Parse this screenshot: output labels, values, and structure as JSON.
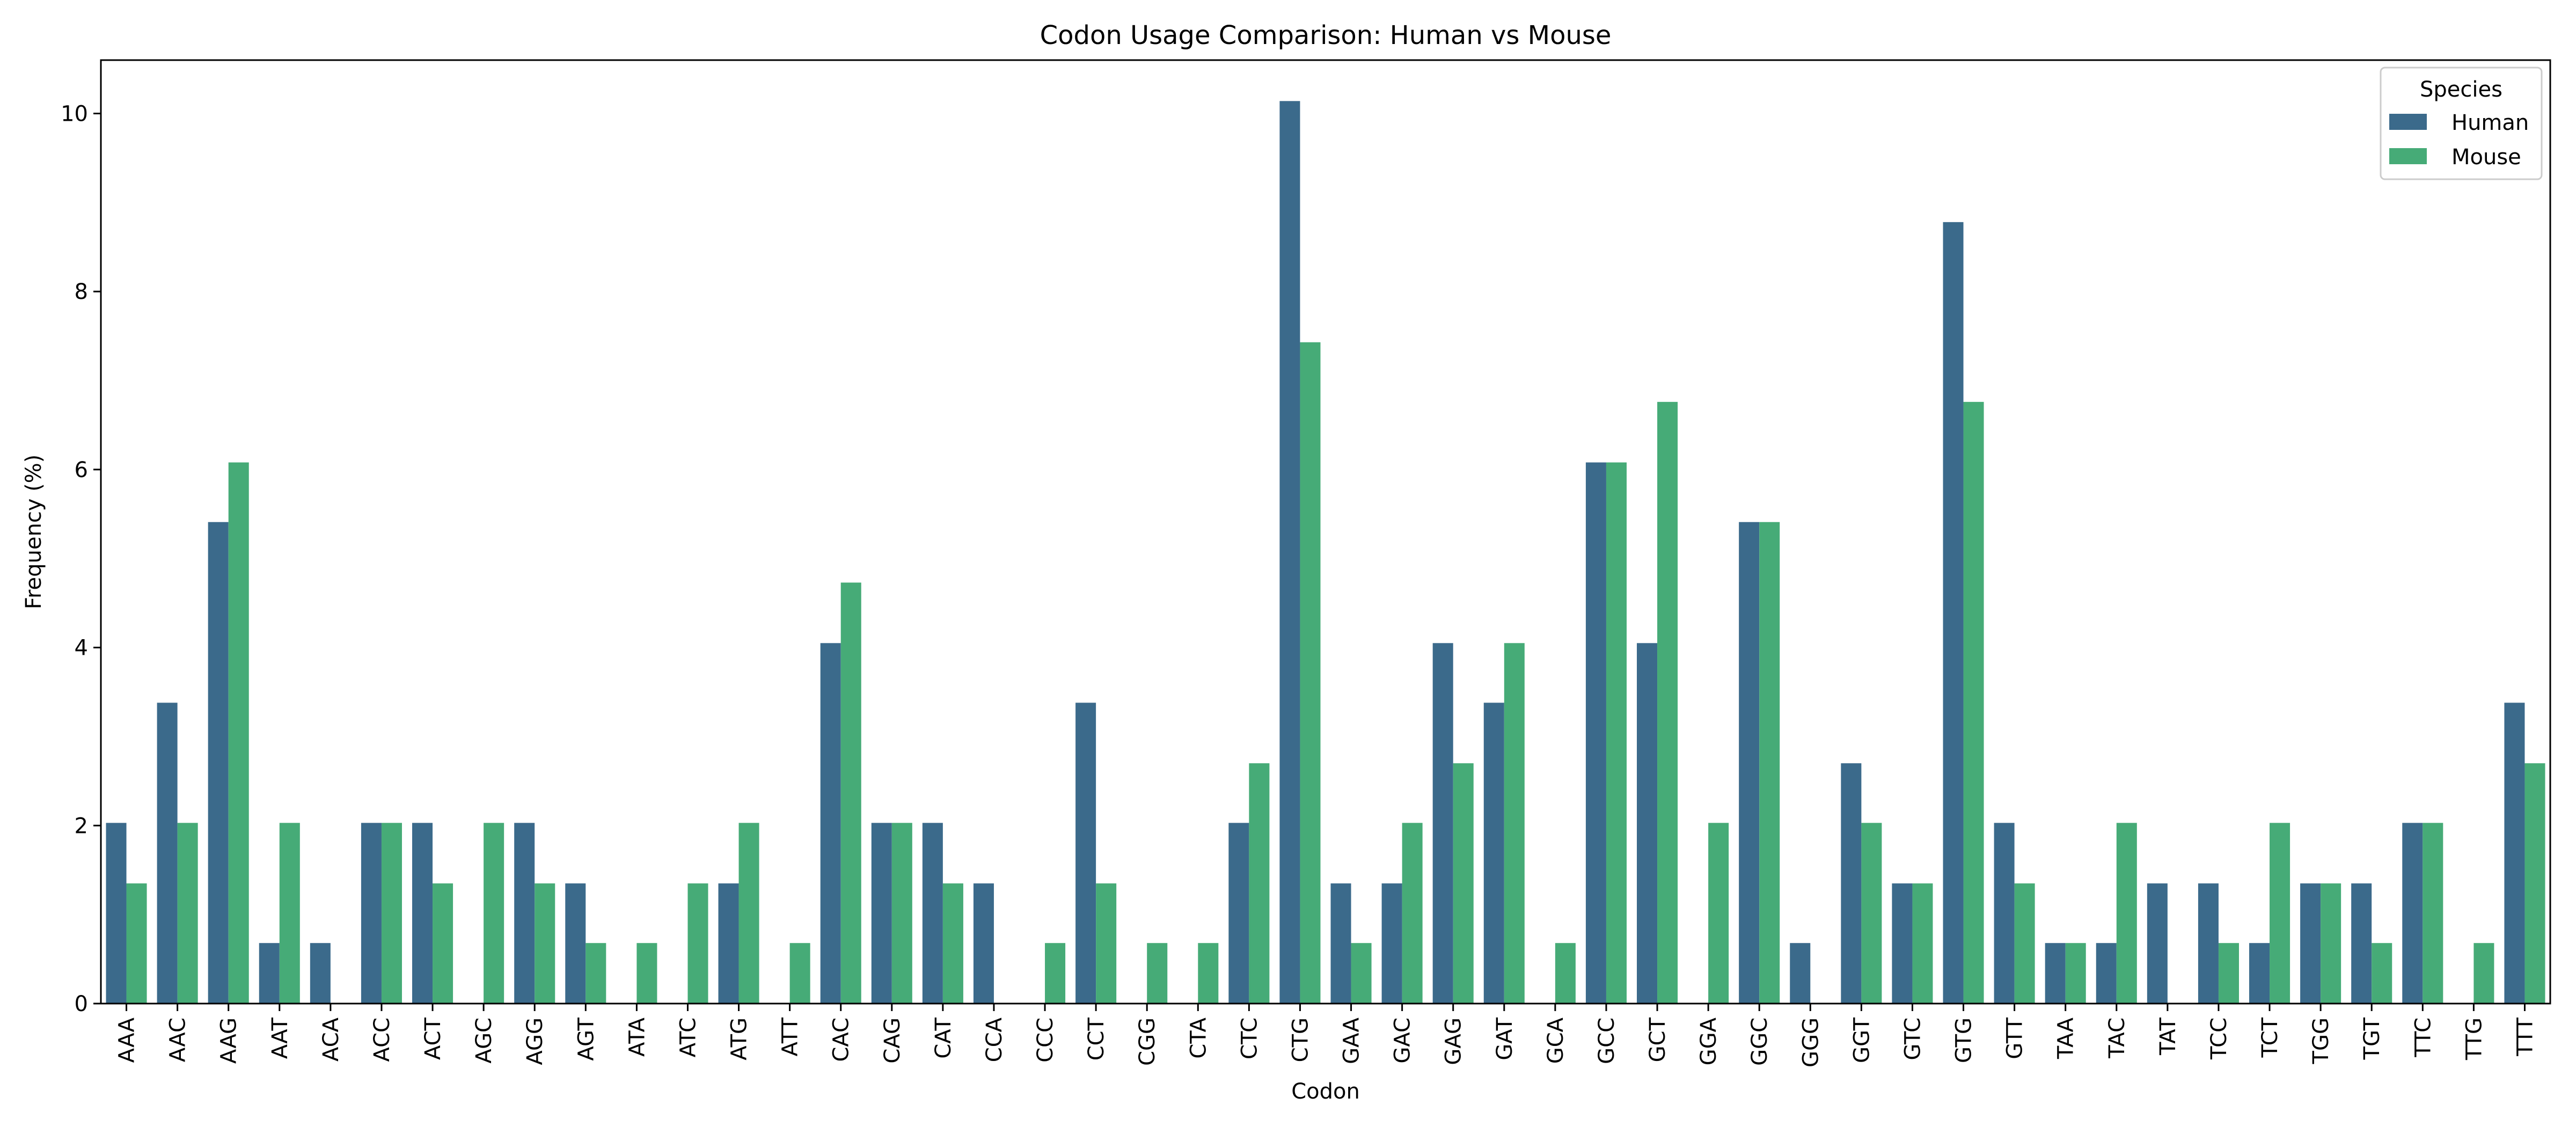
{
  "chart_data": {
    "type": "bar",
    "title": "Codon Usage Comparison: Human vs Mouse",
    "xlabel": "Codon",
    "ylabel": "Frequency (%)",
    "ylim": [
      0,
      10.6
    ],
    "yticks": [
      0,
      2,
      4,
      6,
      8,
      10
    ],
    "categories": [
      "AAA",
      "AAC",
      "AAG",
      "AAT",
      "ACA",
      "ACC",
      "ACT",
      "AGC",
      "AGG",
      "AGT",
      "ATA",
      "ATC",
      "ATG",
      "ATT",
      "CAC",
      "CAG",
      "CAT",
      "CCA",
      "CCC",
      "CCT",
      "CGG",
      "CTA",
      "CTC",
      "CTG",
      "GAA",
      "GAC",
      "GAG",
      "GAT",
      "GCA",
      "GCC",
      "GCT",
      "GGA",
      "GGC",
      "GGG",
      "GGT",
      "GTC",
      "GTG",
      "GTT",
      "TAA",
      "TAC",
      "TAT",
      "TCC",
      "TCT",
      "TGG",
      "TGT",
      "TTC",
      "TTG",
      "TTT"
    ],
    "series": [
      {
        "name": "Human",
        "color": "#3b6a8b",
        "values": [
          2.03,
          3.38,
          5.41,
          0.68,
          0.68,
          2.03,
          2.03,
          0,
          2.03,
          1.35,
          0,
          0,
          1.35,
          0,
          4.05,
          2.03,
          2.03,
          1.35,
          0,
          3.38,
          0,
          0,
          2.03,
          10.14,
          1.35,
          1.35,
          4.05,
          3.38,
          0,
          6.08,
          4.05,
          0,
          5.41,
          0.68,
          2.7,
          1.35,
          8.78,
          2.03,
          0.68,
          0.68,
          1.35,
          1.35,
          0.68,
          1.35,
          1.35,
          2.03,
          0,
          3.38
        ]
      },
      {
        "name": "Mouse",
        "color": "#46ab77",
        "values": [
          1.35,
          2.03,
          6.08,
          2.03,
          0,
          2.03,
          1.35,
          2.03,
          1.35,
          0.68,
          0.68,
          1.35,
          2.03,
          0.68,
          4.73,
          2.03,
          1.35,
          0,
          0.68,
          1.35,
          0.68,
          0.68,
          2.7,
          7.43,
          0.68,
          2.03,
          2.7,
          4.05,
          0.68,
          6.08,
          6.76,
          2.03,
          5.41,
          0,
          2.03,
          1.35,
          6.76,
          1.35,
          0.68,
          2.03,
          0,
          0.68,
          2.03,
          1.35,
          0.68,
          2.03,
          0.68,
          2.7
        ]
      }
    ],
    "legend": {
      "title": "Species",
      "position": "top-right"
    },
    "grid": false
  }
}
